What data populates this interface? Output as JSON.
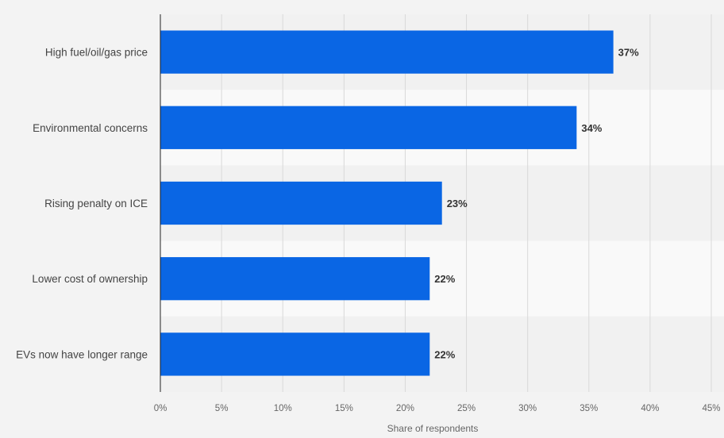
{
  "chart_data": {
    "type": "bar",
    "orientation": "horizontal",
    "categories": [
      "High fuel/oil/gas price",
      "Environmental concerns",
      "Rising penalty on ICE",
      "Lower cost of ownership",
      "EVs now have longer range"
    ],
    "values": [
      37,
      34,
      23,
      22,
      22
    ],
    "data_labels": [
      "37%",
      "34%",
      "23%",
      "22%",
      "22%"
    ],
    "title": "",
    "xlabel": "Share of respondents",
    "ylabel": "",
    "xlim": [
      0,
      45
    ],
    "x_ticks": [
      0,
      5,
      10,
      15,
      20,
      25,
      30,
      35,
      40,
      45
    ],
    "x_tick_labels": [
      "0%",
      "5%",
      "10%",
      "15%",
      "20%",
      "25%",
      "30%",
      "35%",
      "40%",
      "45%"
    ],
    "grid": true,
    "legend": "none",
    "colors": {
      "bar": "#0a66e4",
      "background": "#f3f3f3"
    }
  }
}
